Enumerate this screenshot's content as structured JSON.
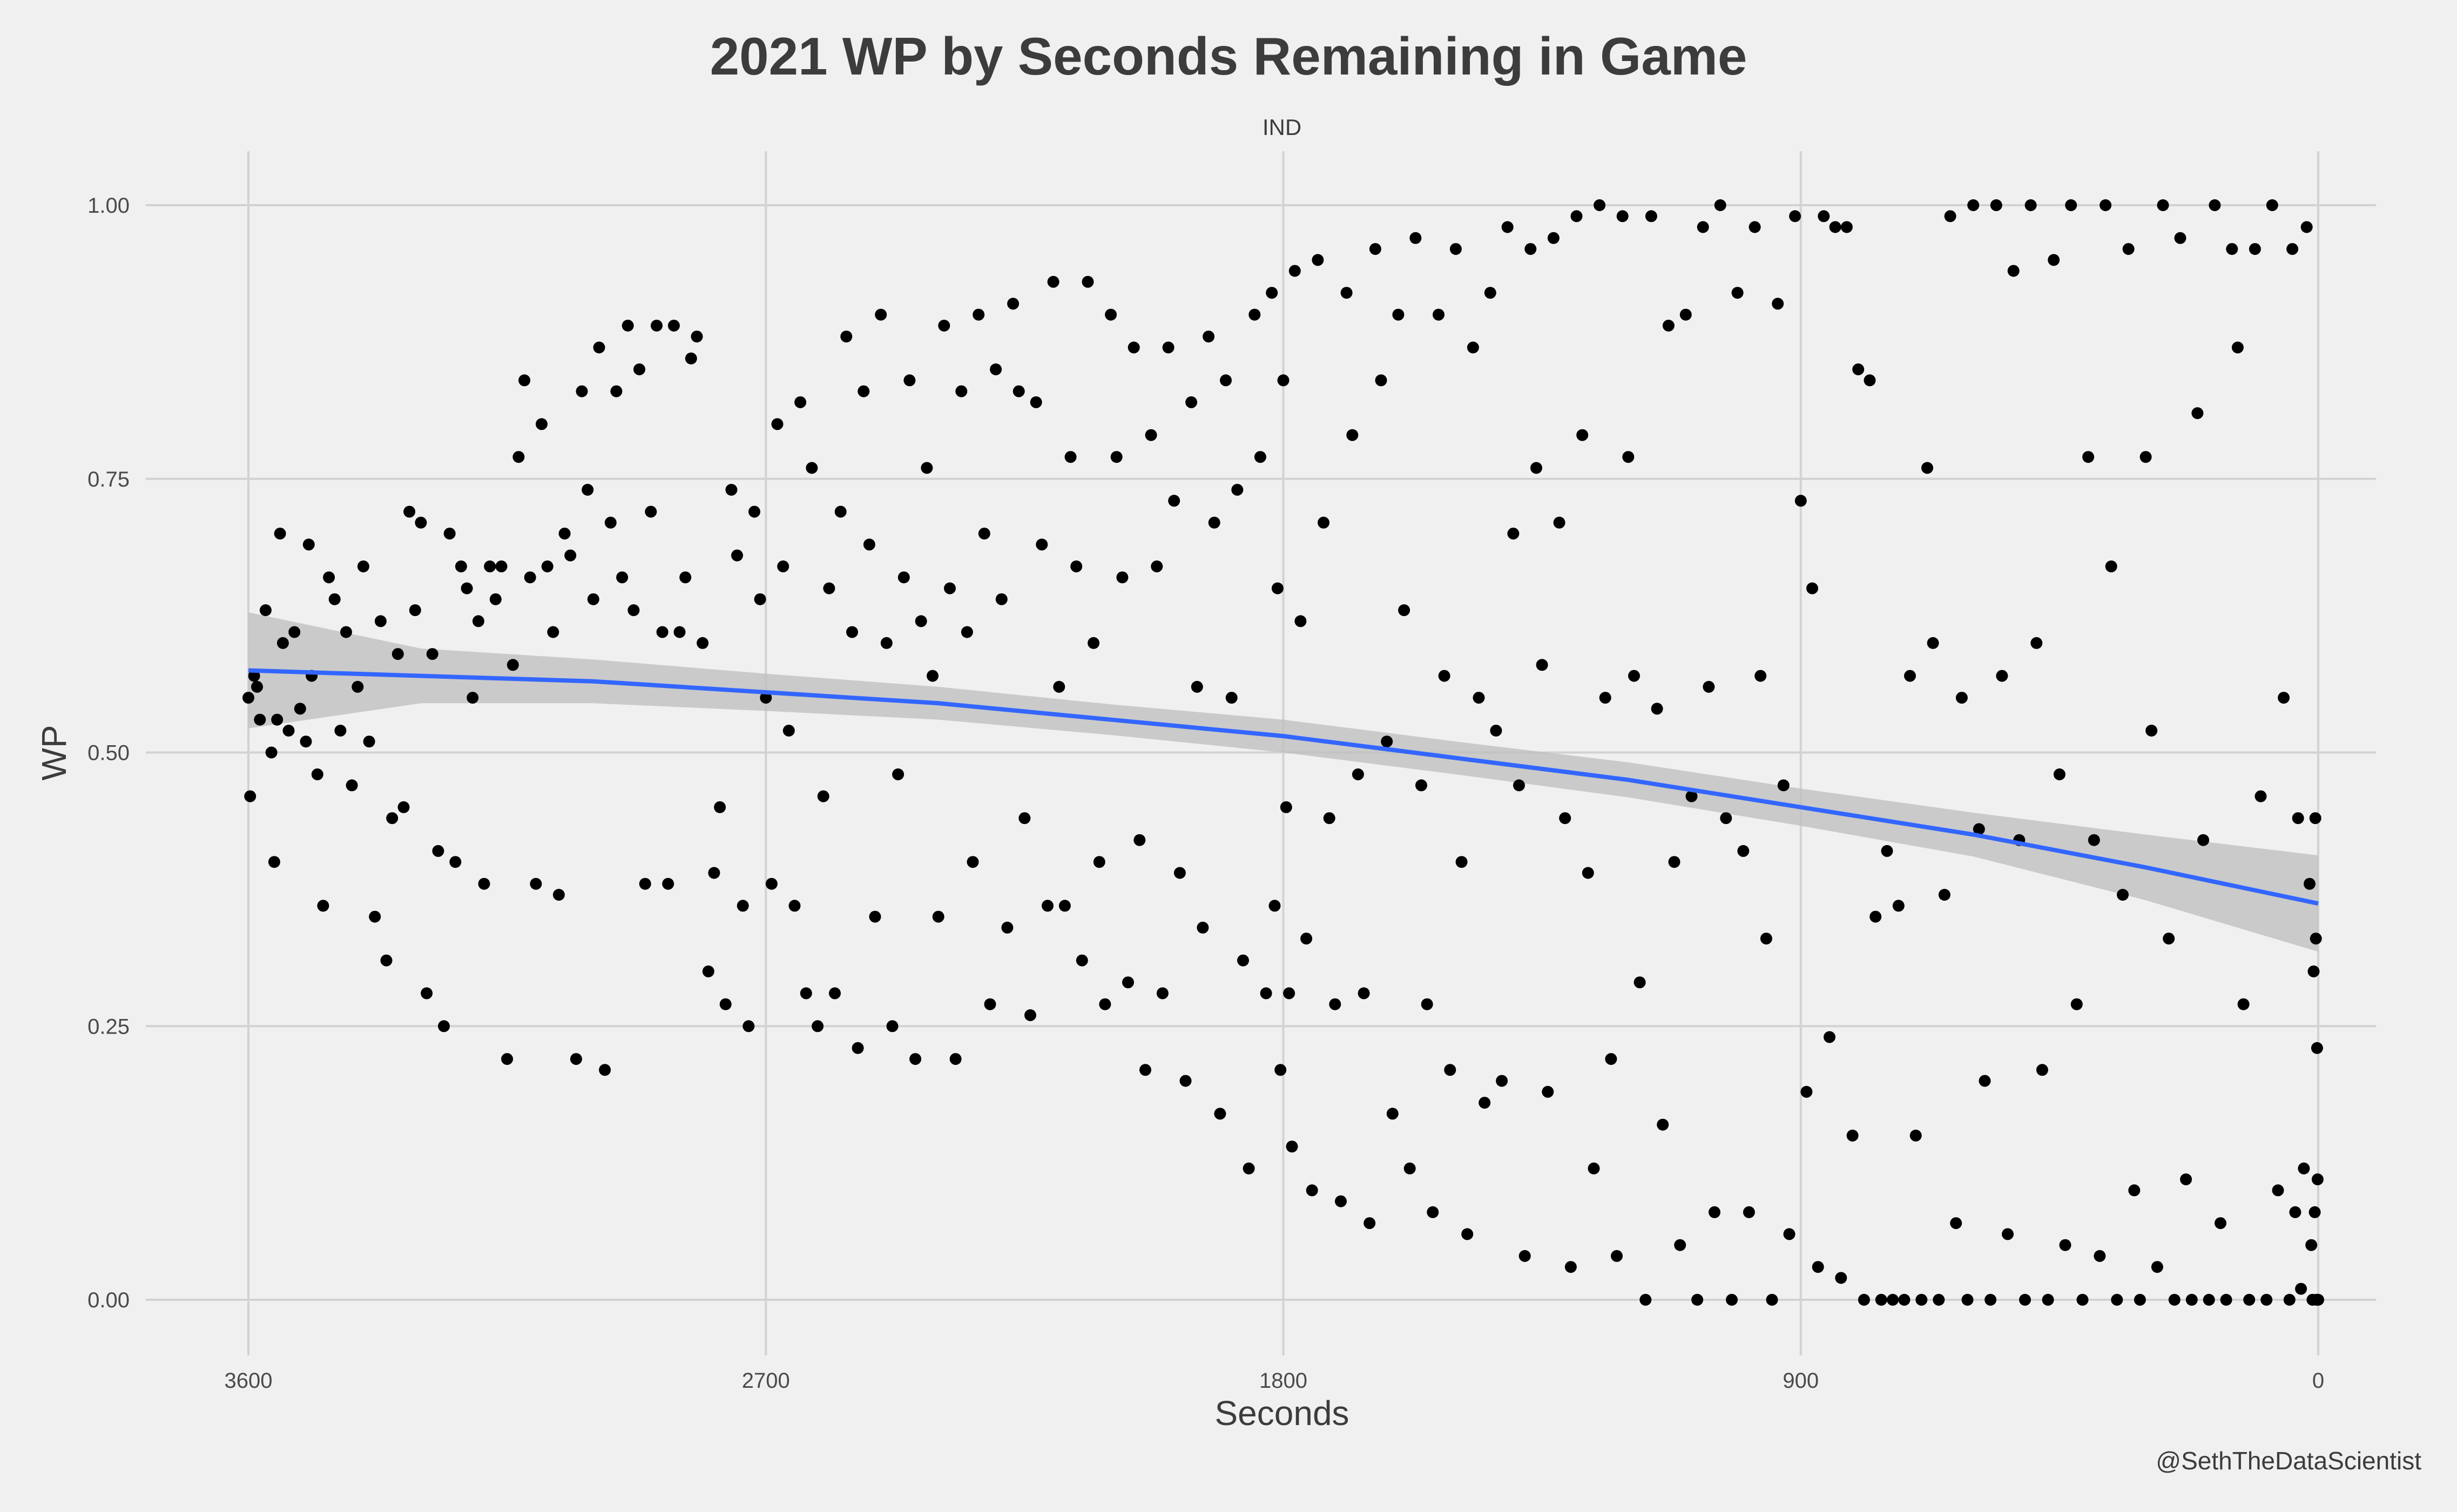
{
  "chart_data": {
    "type": "scatter",
    "title": "2021 WP by Seconds Remaining in Game",
    "facet_label": "IND",
    "xlabel": "Seconds",
    "ylabel": "WP",
    "caption": "@SethTheDataScientist",
    "xlim": [
      3600,
      0
    ],
    "ylim": [
      0,
      1
    ],
    "x_ticks": [
      3600,
      2700,
      1800,
      900,
      0
    ],
    "x_tick_labels": [
      "3600",
      "2700",
      "1800",
      "900",
      "0"
    ],
    "y_ticks": [
      0,
      0.25,
      0.5,
      0.75,
      1
    ],
    "y_tick_labels": [
      "0.00",
      "0.25",
      "0.50",
      "0.75",
      "1.00"
    ],
    "grid": true,
    "point_color": "#000000",
    "trend": {
      "name": "smooth",
      "color": "#3366ff",
      "band_color": "#bdbdbd",
      "x": [
        3600,
        3300,
        3000,
        2700,
        2400,
        2100,
        1800,
        1500,
        1200,
        900,
        600,
        300,
        0
      ],
      "y": [
        0.575,
        0.57,
        0.565,
        0.555,
        0.545,
        0.53,
        0.515,
        0.495,
        0.475,
        0.45,
        0.425,
        0.395,
        0.362
      ],
      "lower": [
        0.522,
        0.545,
        0.545,
        0.538,
        0.53,
        0.516,
        0.5,
        0.48,
        0.459,
        0.433,
        0.405,
        0.365,
        0.318
      ],
      "upper": [
        0.628,
        0.595,
        0.585,
        0.572,
        0.56,
        0.544,
        0.53,
        0.51,
        0.491,
        0.467,
        0.445,
        0.425,
        0.406
      ]
    },
    "points": [
      [
        3600,
        0.55
      ],
      [
        3597,
        0.46
      ],
      [
        3590,
        0.57
      ],
      [
        3585,
        0.56
      ],
      [
        3580,
        0.53
      ],
      [
        3570,
        0.63
      ],
      [
        3560,
        0.5
      ],
      [
        3555,
        0.4
      ],
      [
        3550,
        0.53
      ],
      [
        3545,
        0.7
      ],
      [
        3540,
        0.6
      ],
      [
        3530,
        0.52
      ],
      [
        3520,
        0.61
      ],
      [
        3510,
        0.54
      ],
      [
        3500,
        0.51
      ],
      [
        3495,
        0.69
      ],
      [
        3490,
        0.57
      ],
      [
        3480,
        0.48
      ],
      [
        3470,
        0.36
      ],
      [
        3460,
        0.66
      ],
      [
        3450,
        0.64
      ],
      [
        3440,
        0.52
      ],
      [
        3430,
        0.61
      ],
      [
        3420,
        0.47
      ],
      [
        3410,
        0.56
      ],
      [
        3400,
        0.67
      ],
      [
        3390,
        0.51
      ],
      [
        3380,
        0.35
      ],
      [
        3370,
        0.62
      ],
      [
        3360,
        0.31
      ],
      [
        3350,
        0.44
      ],
      [
        3340,
        0.59
      ],
      [
        3330,
        0.45
      ],
      [
        3320,
        0.72
      ],
      [
        3310,
        0.63
      ],
      [
        3300,
        0.71
      ],
      [
        3290,
        0.28
      ],
      [
        3280,
        0.59
      ],
      [
        3270,
        0.41
      ],
      [
        3260,
        0.25
      ],
      [
        3250,
        0.7
      ],
      [
        3240,
        0.4
      ],
      [
        3230,
        0.67
      ],
      [
        3220,
        0.65
      ],
      [
        3210,
        0.55
      ],
      [
        3200,
        0.62
      ],
      [
        3190,
        0.38
      ],
      [
        3180,
        0.67
      ],
      [
        3170,
        0.64
      ],
      [
        3160,
        0.67
      ],
      [
        3150,
        0.22
      ],
      [
        3140,
        0.58
      ],
      [
        3130,
        0.77
      ],
      [
        3120,
        0.84
      ],
      [
        3110,
        0.66
      ],
      [
        3100,
        0.38
      ],
      [
        3090,
        0.8
      ],
      [
        3080,
        0.67
      ],
      [
        3070,
        0.61
      ],
      [
        3060,
        0.37
      ],
      [
        3050,
        0.7
      ],
      [
        3040,
        0.68
      ],
      [
        3030,
        0.22
      ],
      [
        3020,
        0.83
      ],
      [
        3010,
        0.74
      ],
      [
        3000,
        0.64
      ],
      [
        2990,
        0.87
      ],
      [
        2980,
        0.21
      ],
      [
        2970,
        0.71
      ],
      [
        2960,
        0.83
      ],
      [
        2950,
        0.66
      ],
      [
        2940,
        0.89
      ],
      [
        2930,
        0.63
      ],
      [
        2920,
        0.85
      ],
      [
        2910,
        0.38
      ],
      [
        2900,
        0.72
      ],
      [
        2890,
        0.89
      ],
      [
        2880,
        0.61
      ],
      [
        2870,
        0.38
      ],
      [
        2860,
        0.89
      ],
      [
        2850,
        0.61
      ],
      [
        2840,
        0.66
      ],
      [
        2830,
        0.86
      ],
      [
        2820,
        0.88
      ],
      [
        2810,
        0.6
      ],
      [
        2800,
        0.3
      ],
      [
        2790,
        0.39
      ],
      [
        2780,
        0.45
      ],
      [
        2770,
        0.27
      ],
      [
        2760,
        0.74
      ],
      [
        2750,
        0.68
      ],
      [
        2740,
        0.36
      ],
      [
        2730,
        0.25
      ],
      [
        2720,
        0.72
      ],
      [
        2710,
        0.64
      ],
      [
        2700,
        0.55
      ],
      [
        2690,
        0.38
      ],
      [
        2680,
        0.8
      ],
      [
        2670,
        0.67
      ],
      [
        2660,
        0.52
      ],
      [
        2650,
        0.36
      ],
      [
        2640,
        0.82
      ],
      [
        2630,
        0.28
      ],
      [
        2620,
        0.76
      ],
      [
        2610,
        0.25
      ],
      [
        2600,
        0.46
      ],
      [
        2590,
        0.65
      ],
      [
        2580,
        0.28
      ],
      [
        2570,
        0.72
      ],
      [
        2560,
        0.88
      ],
      [
        2550,
        0.61
      ],
      [
        2540,
        0.23
      ],
      [
        2530,
        0.83
      ],
      [
        2520,
        0.69
      ],
      [
        2510,
        0.35
      ],
      [
        2500,
        0.9
      ],
      [
        2490,
        0.6
      ],
      [
        2480,
        0.25
      ],
      [
        2470,
        0.48
      ],
      [
        2460,
        0.66
      ],
      [
        2450,
        0.84
      ],
      [
        2440,
        0.22
      ],
      [
        2430,
        0.62
      ],
      [
        2420,
        0.76
      ],
      [
        2410,
        0.57
      ],
      [
        2400,
        0.35
      ],
      [
        2390,
        0.89
      ],
      [
        2380,
        0.65
      ],
      [
        2370,
        0.22
      ],
      [
        2360,
        0.83
      ],
      [
        2350,
        0.61
      ],
      [
        2340,
        0.4
      ],
      [
        2330,
        0.9
      ],
      [
        2320,
        0.7
      ],
      [
        2310,
        0.27
      ],
      [
        2300,
        0.85
      ],
      [
        2290,
        0.64
      ],
      [
        2280,
        0.34
      ],
      [
        2270,
        0.91
      ],
      [
        2260,
        0.83
      ],
      [
        2250,
        0.44
      ],
      [
        2240,
        0.26
      ],
      [
        2230,
        0.82
      ],
      [
        2220,
        0.69
      ],
      [
        2210,
        0.36
      ],
      [
        2200,
        0.93
      ],
      [
        2190,
        0.56
      ],
      [
        2180,
        0.36
      ],
      [
        2170,
        0.77
      ],
      [
        2160,
        0.67
      ],
      [
        2150,
        0.31
      ],
      [
        2140,
        0.93
      ],
      [
        2130,
        0.6
      ],
      [
        2120,
        0.4
      ],
      [
        2110,
        0.27
      ],
      [
        2100,
        0.9
      ],
      [
        2090,
        0.77
      ],
      [
        2080,
        0.66
      ],
      [
        2070,
        0.29
      ],
      [
        2060,
        0.87
      ],
      [
        2050,
        0.42
      ],
      [
        2040,
        0.21
      ],
      [
        2030,
        0.79
      ],
      [
        2020,
        0.67
      ],
      [
        2010,
        0.28
      ],
      [
        2000,
        0.87
      ],
      [
        1990,
        0.73
      ],
      [
        1980,
        0.39
      ],
      [
        1970,
        0.2
      ],
      [
        1960,
        0.82
      ],
      [
        1950,
        0.56
      ],
      [
        1940,
        0.34
      ],
      [
        1930,
        0.88
      ],
      [
        1920,
        0.71
      ],
      [
        1910,
        0.17
      ],
      [
        1900,
        0.84
      ],
      [
        1890,
        0.55
      ],
      [
        1880,
        0.74
      ],
      [
        1870,
        0.31
      ],
      [
        1860,
        0.12
      ],
      [
        1850,
        0.9
      ],
      [
        1840,
        0.77
      ],
      [
        1830,
        0.28
      ],
      [
        1820,
        0.92
      ],
      [
        1815,
        0.36
      ],
      [
        1810,
        0.65
      ],
      [
        1805,
        0.21
      ],
      [
        1800,
        0.84
      ],
      [
        1795,
        0.45
      ],
      [
        1790,
        0.28
      ],
      [
        1785,
        0.14
      ],
      [
        1780,
        0.94
      ],
      [
        1770,
        0.62
      ],
      [
        1760,
        0.33
      ],
      [
        1750,
        0.1
      ],
      [
        1740,
        0.95
      ],
      [
        1730,
        0.71
      ],
      [
        1720,
        0.44
      ],
      [
        1710,
        0.27
      ],
      [
        1700,
        0.09
      ],
      [
        1690,
        0.92
      ],
      [
        1680,
        0.79
      ],
      [
        1670,
        0.48
      ],
      [
        1660,
        0.28
      ],
      [
        1650,
        0.07
      ],
      [
        1640,
        0.96
      ],
      [
        1630,
        0.84
      ],
      [
        1620,
        0.51
      ],
      [
        1610,
        0.17
      ],
      [
        1600,
        0.9
      ],
      [
        1590,
        0.63
      ],
      [
        1580,
        0.12
      ],
      [
        1570,
        0.97
      ],
      [
        1560,
        0.47
      ],
      [
        1550,
        0.27
      ],
      [
        1540,
        0.08
      ],
      [
        1530,
        0.9
      ],
      [
        1520,
        0.57
      ],
      [
        1510,
        0.21
      ],
      [
        1500,
        0.96
      ],
      [
        1490,
        0.4
      ],
      [
        1480,
        0.06
      ],
      [
        1470,
        0.87
      ],
      [
        1460,
        0.55
      ],
      [
        1450,
        0.18
      ],
      [
        1440,
        0.92
      ],
      [
        1430,
        0.52
      ],
      [
        1420,
        0.2
      ],
      [
        1410,
        0.98
      ],
      [
        1400,
        0.7
      ],
      [
        1390,
        0.47
      ],
      [
        1380,
        0.04
      ],
      [
        1370,
        0.96
      ],
      [
        1360,
        0.76
      ],
      [
        1350,
        0.58
      ],
      [
        1340,
        0.19
      ],
      [
        1330,
        0.97
      ],
      [
        1320,
        0.71
      ],
      [
        1310,
        0.44
      ],
      [
        1300,
        0.03
      ],
      [
        1290,
        0.99
      ],
      [
        1280,
        0.79
      ],
      [
        1270,
        0.39
      ],
      [
        1260,
        0.12
      ],
      [
        1250,
        1.0
      ],
      [
        1240,
        0.55
      ],
      [
        1230,
        0.22
      ],
      [
        1220,
        0.04
      ],
      [
        1210,
        0.99
      ],
      [
        1200,
        0.77
      ],
      [
        1190,
        0.57
      ],
      [
        1180,
        0.29
      ],
      [
        1170,
        0.0
      ],
      [
        1160,
        0.99
      ],
      [
        1150,
        0.54
      ],
      [
        1140,
        0.16
      ],
      [
        1130,
        0.89
      ],
      [
        1120,
        0.4
      ],
      [
        1110,
        0.05
      ],
      [
        1100,
        0.9
      ],
      [
        1090,
        0.46
      ],
      [
        1080,
        0.0
      ],
      [
        1070,
        0.98
      ],
      [
        1060,
        0.56
      ],
      [
        1050,
        0.08
      ],
      [
        1040,
        1.0
      ],
      [
        1030,
        0.44
      ],
      [
        1020,
        0.0
      ],
      [
        1010,
        0.92
      ],
      [
        1000,
        0.41
      ],
      [
        990,
        0.08
      ],
      [
        980,
        0.98
      ],
      [
        970,
        0.57
      ],
      [
        960,
        0.33
      ],
      [
        950,
        0.0
      ],
      [
        940,
        0.91
      ],
      [
        930,
        0.47
      ],
      [
        920,
        0.06
      ],
      [
        910,
        0.99
      ],
      [
        900,
        0.73
      ],
      [
        890,
        0.19
      ],
      [
        880,
        0.65
      ],
      [
        870,
        0.03
      ],
      [
        860,
        0.99
      ],
      [
        850,
        0.24
      ],
      [
        840,
        0.98
      ],
      [
        830,
        0.02
      ],
      [
        820,
        0.98
      ],
      [
        810,
        0.15
      ],
      [
        800,
        0.85
      ],
      [
        790,
        0.0
      ],
      [
        780,
        0.84
      ],
      [
        770,
        0.35
      ],
      [
        760,
        0.0
      ],
      [
        750,
        0.41
      ],
      [
        740,
        0.0
      ],
      [
        730,
        0.36
      ],
      [
        720,
        0.0
      ],
      [
        710,
        0.57
      ],
      [
        700,
        0.15
      ],
      [
        690,
        0.0
      ],
      [
        680,
        0.76
      ],
      [
        670,
        0.6
      ],
      [
        660,
        0.0
      ],
      [
        650,
        0.37
      ],
      [
        640,
        0.99
      ],
      [
        630,
        0.07
      ],
      [
        620,
        0.55
      ],
      [
        610,
        0.0
      ],
      [
        600,
        1.0
      ],
      [
        590,
        0.43
      ],
      [
        580,
        0.2
      ],
      [
        570,
        0.0
      ],
      [
        560,
        1.0
      ],
      [
        550,
        0.57
      ],
      [
        540,
        0.06
      ],
      [
        530,
        0.94
      ],
      [
        520,
        0.42
      ],
      [
        510,
        0.0
      ],
      [
        500,
        1.0
      ],
      [
        490,
        0.6
      ],
      [
        480,
        0.21
      ],
      [
        470,
        0.0
      ],
      [
        460,
        0.95
      ],
      [
        450,
        0.48
      ],
      [
        440,
        0.05
      ],
      [
        430,
        1.0
      ],
      [
        420,
        0.27
      ],
      [
        410,
        0.0
      ],
      [
        400,
        0.77
      ],
      [
        390,
        0.42
      ],
      [
        380,
        0.04
      ],
      [
        370,
        1.0
      ],
      [
        360,
        0.67
      ],
      [
        350,
        0.0
      ],
      [
        340,
        0.37
      ],
      [
        330,
        0.96
      ],
      [
        320,
        0.1
      ],
      [
        310,
        0.0
      ],
      [
        300,
        0.77
      ],
      [
        290,
        0.52
      ],
      [
        280,
        0.03
      ],
      [
        270,
        1.0
      ],
      [
        260,
        0.33
      ],
      [
        250,
        0.0
      ],
      [
        240,
        0.97
      ],
      [
        230,
        0.11
      ],
      [
        220,
        0.0
      ],
      [
        210,
        0.81
      ],
      [
        200,
        0.42
      ],
      [
        190,
        0.0
      ],
      [
        180,
        1.0
      ],
      [
        170,
        0.07
      ],
      [
        160,
        0.0
      ],
      [
        150,
        0.96
      ],
      [
        140,
        0.87
      ],
      [
        130,
        0.27
      ],
      [
        120,
        0.0
      ],
      [
        110,
        0.96
      ],
      [
        100,
        0.46
      ],
      [
        90,
        0.0
      ],
      [
        80,
        1.0
      ],
      [
        70,
        0.1
      ],
      [
        60,
        0.55
      ],
      [
        50,
        0.0
      ],
      [
        45,
        0.96
      ],
      [
        40,
        0.08
      ],
      [
        35,
        0.44
      ],
      [
        30,
        0.01
      ],
      [
        25,
        0.12
      ],
      [
        20,
        0.98
      ],
      [
        15,
        0.38
      ],
      [
        12,
        0.05
      ],
      [
        10,
        0.0
      ],
      [
        8,
        0.3
      ],
      [
        6,
        0.08
      ],
      [
        5,
        0.44
      ],
      [
        4,
        0.33
      ],
      [
        3,
        0.0
      ],
      [
        2,
        0.23
      ],
      [
        1,
        0.11
      ],
      [
        0,
        0.0
      ]
    ]
  }
}
